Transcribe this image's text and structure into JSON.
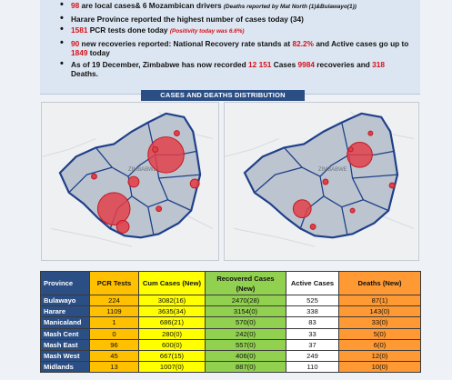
{
  "bullets": [
    {
      "pre": "",
      "num": "98",
      "text": " are local cases& 6 Mozambican drivers ",
      "note": "(Deaths reported by Mat North (1)&Bulawayo(1))"
    },
    {
      "pre": "",
      "num": "",
      "text": "Harare Province reported the highest number of cases today (34)",
      "note": ""
    },
    {
      "pre": "",
      "num": "1581",
      "text": " PCR tests done today ",
      "note": "(Positivity today was 6.6%)"
    },
    {
      "pre": "",
      "num": "90",
      "text": " new recoveries reported: National Recovery rate stands at ",
      "num2": "82.2%",
      "text2": " and Active cases go up to ",
      "num3": "1849",
      "text3": " today"
    },
    {
      "pre": "As of 19 December, Zimbabwe has now recorded ",
      "num": "12 151",
      "text": " Cases ",
      "num2": "9984",
      "text2": " recoveries and ",
      "num3": "318",
      "text3": " Deaths."
    }
  ],
  "banner": "CASES AND DEATHS DISTRIBUTION",
  "map_labels": {
    "zimbabwe_left": "ZIMBABWE",
    "zimbabwe_right": "ZIMBABWE"
  },
  "table": {
    "headers": {
      "province": "Province",
      "pcr": "PCR Tests",
      "cum": "Cum Cases (New)",
      "rec": "Recovered Cases (New)",
      "act": "Active Cases",
      "dth": "Deaths (New)"
    },
    "rows": [
      {
        "province": "Bulawayo",
        "pcr": "224",
        "cum": "3082(16)",
        "rec": "2470(28)",
        "act": "525",
        "dth": "87(1)"
      },
      {
        "province": "Harare",
        "pcr": "1109",
        "cum": "3635(34)",
        "rec": "3154(0)",
        "act": "338",
        "dth": "143(0)"
      },
      {
        "province": "Manicaland",
        "pcr": "1",
        "cum": "686(21)",
        "rec": "570(0)",
        "act": "83",
        "dth": "33(0)"
      },
      {
        "province": "Mash Cent",
        "pcr": "0",
        "cum": "280(0)",
        "rec": "242(0)",
        "act": "33",
        "dth": "5(0)"
      },
      {
        "province": "Mash East",
        "pcr": "96",
        "cum": "600(0)",
        "rec": "557(0)",
        "act": "37",
        "dth": "6(0)"
      },
      {
        "province": "Mash West",
        "pcr": "45",
        "cum": "667(15)",
        "rec": "406(0)",
        "act": "249",
        "dth": "12(0)"
      },
      {
        "province": "Midlands",
        "pcr": "13",
        "cum": "1007(0)",
        "rec": "887(0)",
        "act": "110",
        "dth": "10(0)"
      }
    ]
  },
  "colors": {
    "navy": "#2b4f85",
    "red": "#d4121a",
    "bubble": "#e0404a",
    "pcr": "#ffc000",
    "cum": "#ffff00",
    "rec": "#92d050",
    "dth": "#ff9933"
  }
}
